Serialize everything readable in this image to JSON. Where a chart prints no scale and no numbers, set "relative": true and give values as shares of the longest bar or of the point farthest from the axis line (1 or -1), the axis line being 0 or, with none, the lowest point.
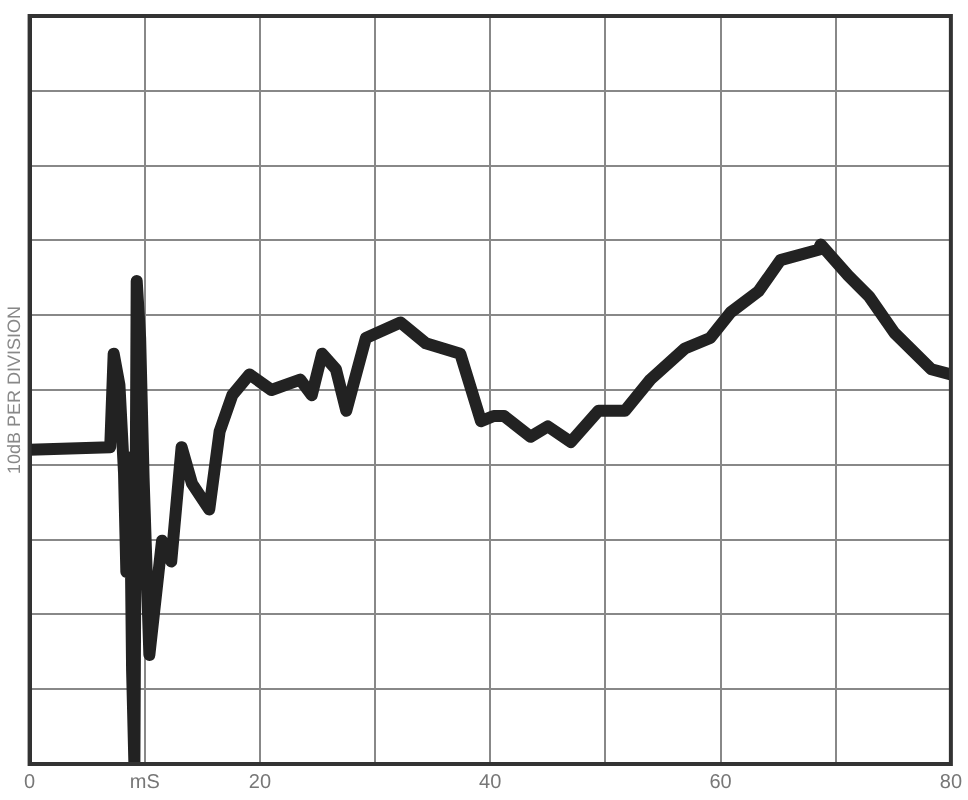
{
  "chart_data": {
    "type": "line",
    "ylabel": "10dB PER DIVISION",
    "relative": true,
    "grid": true,
    "legend": false,
    "tick_labels": "x",
    "marker": "none",
    "line_style": "solid",
    "xlim": [
      0,
      80
    ],
    "xticks": [
      0,
      {
        "value": 10,
        "label": "mS"
      },
      20,
      {
        "value": 30,
        "label": null
      },
      40,
      {
        "value": 50,
        "label": null
      },
      60,
      {
        "value": 70,
        "label": null
      },
      80
    ],
    "series": [
      {
        "color": "#222222",
        "x": [
          0,
          7.0,
          7.3,
          7.8,
          8.2,
          8.4,
          8.7,
          8.9,
          9.1,
          9.3,
          9.6,
          9.9,
          10.4,
          11.5,
          12.3,
          13.2,
          14.1,
          15.6,
          16.5,
          17.6,
          19.1,
          21.0,
          23.5,
          24.5,
          25.4,
          26.6,
          27.5,
          29.2,
          32.2,
          34.4,
          37.4,
          39.2,
          40.3,
          41.2,
          43.5,
          45.0,
          47.0,
          49.4,
          51.7,
          53.9,
          56.9,
          59.1,
          60.9,
          63.3,
          65.2,
          68.5,
          68.7,
          71.1,
          72.9,
          75.1,
          78.3,
          80
        ],
        "values": [
          0.605,
          0.61,
          0.79,
          0.73,
          0.56,
          0.37,
          0.59,
          0.18,
          0.0,
          0.93,
          0.82,
          0.55,
          0.21,
          0.43,
          0.39,
          0.61,
          0.54,
          0.49,
          0.64,
          0.71,
          0.75,
          0.72,
          0.74,
          0.71,
          0.79,
          0.76,
          0.68,
          0.82,
          0.85,
          0.81,
          0.79,
          0.66,
          0.67,
          0.67,
          0.63,
          0.65,
          0.62,
          0.68,
          0.68,
          0.74,
          0.8,
          0.82,
          0.87,
          0.91,
          0.97,
          0.99,
          1.0,
          0.94,
          0.9,
          0.83,
          0.76,
          0.75
        ]
      }
    ]
  }
}
